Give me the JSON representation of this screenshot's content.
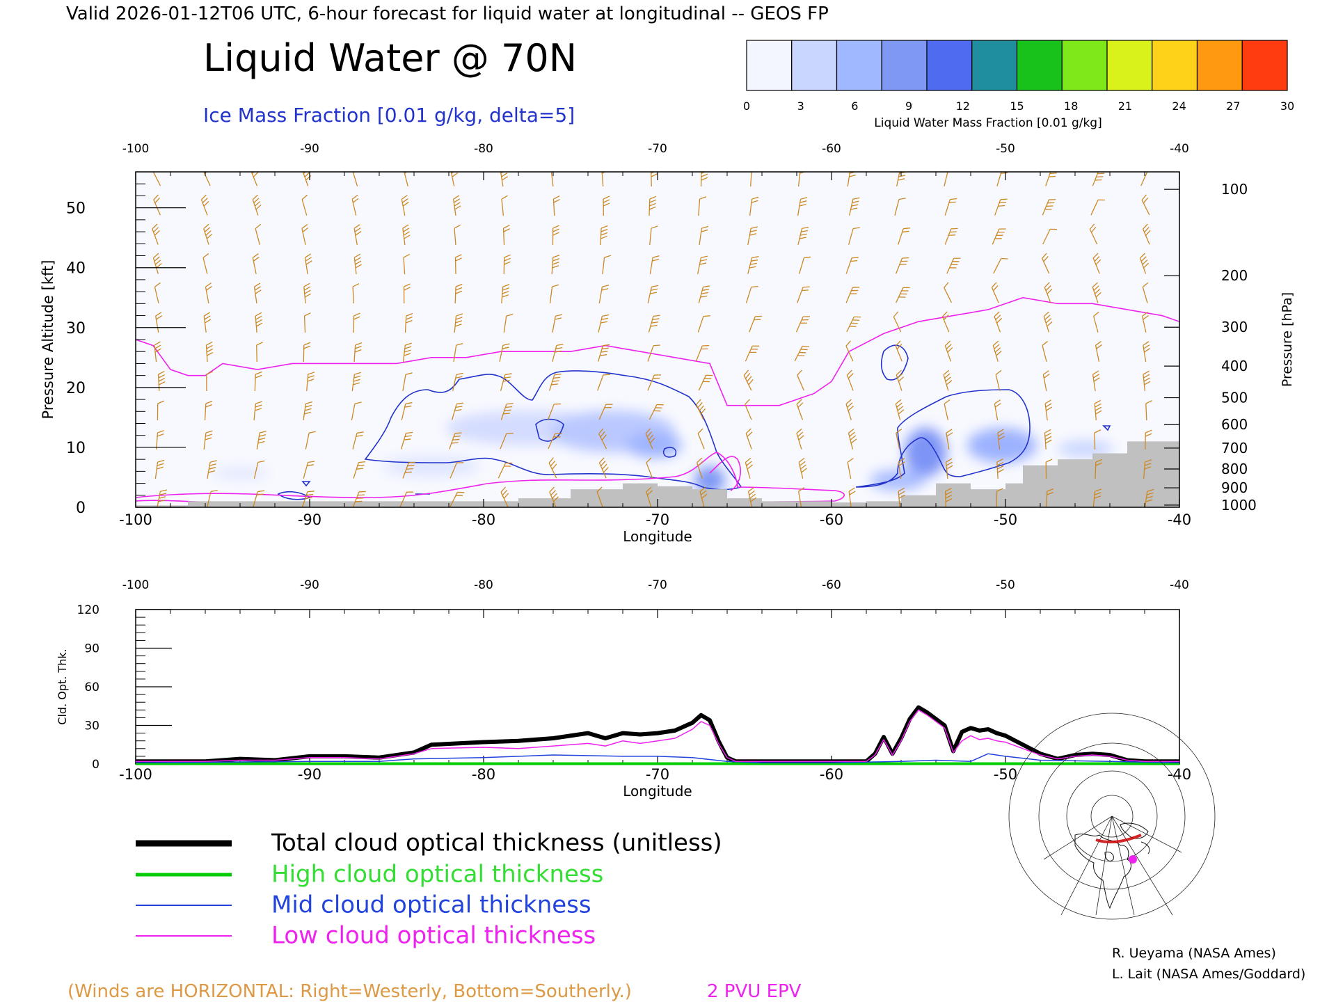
{
  "header": {
    "valid_line": "Valid 2026-01-12T06 UTC, 6-hour forecast for liquid water at longitudinal -- GEOS FP",
    "title": "Liquid Water @ 70N",
    "ice_subtitle": "Ice Mass Fraction [0.01 g/kg, delta=5]"
  },
  "colorbar": {
    "label": "Liquid Water Mass Fraction [0.01 g/kg]",
    "ticks": [
      "0",
      "3",
      "6",
      "9",
      "12",
      "15",
      "18",
      "21",
      "24",
      "27",
      "30"
    ],
    "colors": [
      "#f4f6ff",
      "#c9d6ff",
      "#9fb8ff",
      "#7f98f4",
      "#4f6cf0",
      "#1f8fa0",
      "#19c21a",
      "#7fe81a",
      "#d9f21a",
      "#ffd21a",
      "#ff9a10",
      "#ff3c10"
    ]
  },
  "top_panel": {
    "xlabel": "Longitude",
    "ylabel_left": "Pressure Altitude [kft]",
    "ylabel_right": "Pressure [hPa]",
    "x_ticks": [
      "-100",
      "-90",
      "-80",
      "-70",
      "-60",
      "-50",
      "-40"
    ],
    "y_ticks_left": [
      "0",
      "10",
      "20",
      "30",
      "40",
      "50"
    ],
    "y_ticks_right": [
      "100",
      "200",
      "300",
      "400",
      "500",
      "600",
      "700",
      "800",
      "900",
      "1000"
    ],
    "xlim": [
      -100,
      -40
    ],
    "ylim_kft": [
      0,
      56
    ]
  },
  "bottom_panel": {
    "xlabel": "Longitude",
    "ylabel": "Cld. Opt. Thk.",
    "x_ticks": [
      "-100",
      "-90",
      "-80",
      "-70",
      "-60",
      "-50",
      "-40"
    ],
    "y_ticks": [
      "0",
      "30",
      "60",
      "90",
      "120"
    ],
    "xlim": [
      -100,
      -40
    ],
    "ylim": [
      0,
      120
    ]
  },
  "legend": {
    "total": "Total cloud optical thickness (unitless)",
    "high": "High cloud optical thickness",
    "mid": "Mid cloud optical thickness",
    "low": "Low cloud optical thickness"
  },
  "footer": {
    "winds_note": "(Winds are HORIZONTAL: Right=Westerly, Bottom=Southerly.)",
    "epv_note": "2 PVU EPV",
    "credit1": "R. Ueyama (NASA Ames)",
    "credit2": "L. Lait (NASA Ames/Goddard)"
  },
  "colors": {
    "wind": "#cc8822",
    "epv": "#ee22ee",
    "ice": "#2233cc",
    "total": "#000000",
    "high": "#00cc00",
    "mid": "#2244dd",
    "low": "#ee22ee",
    "terrain": "#c0c0c0"
  },
  "chart_data": [
    {
      "type": "line",
      "title": "Liquid Water @ 70N",
      "xlabel": "Longitude",
      "ylabel": "Pressure Altitude [kft]",
      "xlim": [
        -100,
        -40
      ],
      "ylim": [
        0,
        56
      ],
      "series": [
        {
          "name": "2 PVU EPV",
          "x": [
            -100,
            -99,
            -98,
            -97,
            -96,
            -95,
            -93,
            -91,
            -89,
            -87,
            -85,
            -83,
            -81,
            -79,
            -77,
            -75,
            -73,
            -71,
            -69,
            -67,
            -66,
            -65,
            -63,
            -61,
            -60,
            -59,
            -57,
            -55,
            -53,
            -51,
            -49,
            -47,
            -45,
            -43,
            -41,
            -40
          ],
          "y": [
            28,
            27,
            23,
            22,
            22,
            24,
            23,
            24,
            24,
            24,
            24,
            25,
            25,
            26,
            26,
            26,
            27,
            26,
            25,
            24,
            17,
            17,
            17,
            19,
            21,
            26,
            29,
            31,
            32,
            33,
            35,
            34,
            34,
            33,
            32,
            31
          ]
        },
        {
          "name": "Terrain",
          "x": [
            -100,
            -97,
            -90,
            -80,
            -78,
            -75,
            -72,
            -70,
            -68,
            -66,
            -64,
            -62,
            -60,
            -58,
            -56,
            -54,
            -52,
            -50,
            -49,
            -47,
            -45,
            -43,
            -40
          ],
          "y": [
            0.3,
            1,
            1,
            1,
            1.5,
            3,
            4,
            3.5,
            3,
            1.5,
            1,
            1,
            0.8,
            1,
            2,
            4,
            3,
            4,
            7,
            8,
            9,
            11,
            11
          ]
        }
      ]
    },
    {
      "type": "line",
      "title": "",
      "xlabel": "Longitude",
      "ylabel": "Cld. Opt. Thk.",
      "xlim": [
        -100,
        -40
      ],
      "ylim": [
        0,
        120
      ],
      "series": [
        {
          "name": "Total cloud optical thickness (unitless)",
          "x": [
            -100,
            -96,
            -94,
            -92,
            -90,
            -88,
            -86,
            -84,
            -83,
            -80,
            -78,
            -76,
            -74,
            -73,
            -72,
            -71,
            -70,
            -69,
            -68,
            -67.5,
            -67,
            -66.5,
            -66,
            -65.5,
            -64,
            -60,
            -58,
            -57.5,
            -57,
            -56.5,
            -56,
            -55.5,
            -55,
            -54.5,
            -54,
            -53.5,
            -53,
            -52.5,
            -52,
            -51.5,
            -51,
            -50.5,
            -50,
            -49,
            -48,
            -47,
            -46,
            -45,
            -44,
            -43,
            -42,
            -40
          ],
          "y": [
            2,
            2,
            4,
            3,
            6,
            6,
            5,
            9,
            15,
            17,
            18,
            20,
            24,
            20,
            24,
            23,
            24,
            26,
            32,
            38,
            34,
            18,
            5,
            2,
            2,
            2,
            2,
            8,
            21,
            8,
            20,
            35,
            44,
            40,
            35,
            30,
            10,
            25,
            28,
            26,
            27,
            24,
            22,
            15,
            8,
            4,
            7,
            8,
            7,
            3,
            2,
            2
          ]
        },
        {
          "name": "High cloud optical thickness",
          "x": [
            -100,
            -90,
            -80,
            -70,
            -60,
            -50,
            -40
          ],
          "y": [
            0.3,
            0.3,
            0.3,
            0.3,
            0.3,
            0.3,
            0.3
          ]
        },
        {
          "name": "Mid cloud optical thickness",
          "x": [
            -100,
            -90,
            -86,
            -84,
            -80,
            -76,
            -72,
            -70,
            -68,
            -66,
            -64,
            -60,
            -56,
            -54,
            -52,
            -51,
            -50,
            -48,
            -44,
            -40
          ],
          "y": [
            1,
            2,
            2,
            4,
            5,
            7,
            6,
            6,
            5,
            2,
            1,
            1,
            2,
            3,
            2,
            8,
            6,
            3,
            2,
            1
          ]
        },
        {
          "name": "Low cloud optical thickness",
          "x": [
            -100,
            -96,
            -94,
            -92,
            -90,
            -88,
            -86,
            -84,
            -83,
            -80,
            -78,
            -76,
            -74,
            -73,
            -72,
            -71,
            -70,
            -69,
            -68,
            -67.5,
            -67,
            -66.5,
            -66,
            -65.5,
            -64,
            -60,
            -58,
            -57.5,
            -57,
            -56.5,
            -56,
            -55.5,
            -55,
            -54.5,
            -54,
            -53.5,
            -53,
            -52.5,
            -52,
            -51.5,
            -51,
            -50.5,
            -50,
            -49,
            -48,
            -47,
            -46,
            -45,
            -44,
            -43,
            -42,
            -40
          ],
          "y": [
            2,
            2,
            3,
            3,
            5,
            5,
            4,
            8,
            12,
            13,
            12,
            14,
            16,
            14,
            18,
            16,
            18,
            20,
            27,
            33,
            30,
            16,
            5,
            2,
            2,
            2,
            2,
            7,
            19,
            7,
            18,
            33,
            42,
            38,
            33,
            28,
            9,
            18,
            22,
            19,
            20,
            18,
            17,
            12,
            7,
            4,
            6,
            7,
            6,
            3,
            2,
            2
          ]
        }
      ]
    }
  ]
}
